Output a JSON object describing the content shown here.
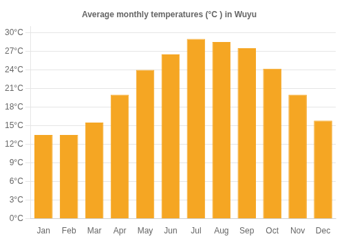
{
  "chart_data": {
    "type": "bar",
    "title": "Average monthly temperatures (°C ) in Wuyu",
    "categories": [
      "Jan",
      "Feb",
      "Mar",
      "Apr",
      "May",
      "Jun",
      "Jul",
      "Aug",
      "Sep",
      "Oct",
      "Nov",
      "Dec"
    ],
    "values": [
      13.5,
      13.5,
      15.5,
      20.0,
      24.0,
      26.5,
      29.0,
      28.5,
      27.5,
      24.2,
      20.0,
      15.8
    ],
    "color": "#F5A623",
    "ylim": [
      0,
      31
    ],
    "yticks": [
      {
        "value": 0,
        "label": "0°C"
      },
      {
        "value": 3,
        "label": "3°C"
      },
      {
        "value": 6,
        "label": "6°C"
      },
      {
        "value": 9,
        "label": "9°C"
      },
      {
        "value": 12,
        "label": "12°C"
      },
      {
        "value": 15,
        "label": "15°C"
      },
      {
        "value": 18,
        "label": "18°C"
      },
      {
        "value": 21,
        "label": "21°C"
      },
      {
        "value": 24,
        "label": "24°C"
      },
      {
        "value": 27,
        "label": "27°C"
      },
      {
        "value": 30,
        "label": "30°C"
      }
    ],
    "grid": true
  }
}
